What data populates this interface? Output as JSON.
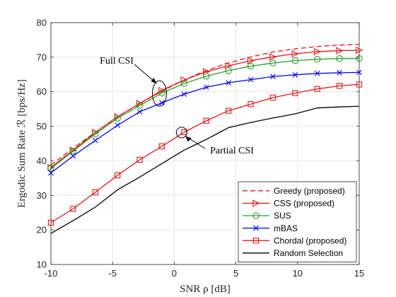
{
  "chart_data": {
    "type": "line",
    "xlabel": "SNR ρ [dB]",
    "ylabel": "Ergodic Sum Rate ℛ [bps/Hz]",
    "xlim": [
      -10,
      15
    ],
    "ylim": [
      10,
      80
    ],
    "xticks": [
      -10,
      -5,
      0,
      5,
      10,
      15
    ],
    "yticks": [
      10,
      20,
      30,
      40,
      50,
      60,
      70,
      80
    ],
    "grid": true,
    "legend_position": "bottom-right",
    "x": [
      -10,
      -8.2,
      -6.4,
      -4.6,
      -2.8,
      -1,
      0.8,
      2.6,
      4.4,
      6.2,
      8,
      9.8,
      11.6,
      13.4,
      15
    ],
    "series": [
      {
        "name": "Greedy (proposed)",
        "color": "#e41a1c",
        "line": "dashed",
        "marker": "none",
        "x": [
          -10,
          -8,
          -6,
          -4,
          -2,
          0,
          2,
          4,
          6,
          8,
          10,
          12,
          14,
          15
        ],
        "values": [
          38.8,
          44.2,
          49.3,
          54.0,
          58.2,
          62.0,
          65.3,
          67.9,
          69.9,
          71.5,
          72.5,
          73.2,
          73.6,
          73.7
        ]
      },
      {
        "name": "CSS (proposed)",
        "color": "#e41a1c",
        "line": "solid",
        "marker": "triangle-right",
        "values": [
          38.1,
          43.1,
          48.2,
          52.8,
          56.6,
          60.4,
          63.4,
          65.8,
          67.5,
          69.0,
          70.1,
          71.0,
          71.6,
          71.9,
          72.0
        ]
      },
      {
        "name": "SUS",
        "color": "#2ca02c",
        "line": "solid",
        "marker": "circle",
        "values": [
          37.8,
          42.8,
          47.8,
          52.3,
          56.0,
          59.6,
          62.4,
          64.5,
          66.1,
          67.4,
          68.3,
          69.0,
          69.4,
          69.6,
          69.6
        ]
      },
      {
        "name": "mBAS",
        "color": "#0000ff",
        "line": "solid",
        "marker": "x",
        "values": [
          36.5,
          41.4,
          45.9,
          50.3,
          54.2,
          56.8,
          59.3,
          61.3,
          62.6,
          63.5,
          64.4,
          64.9,
          65.3,
          65.5,
          65.6
        ]
      },
      {
        "name": "Chordal (proposed)",
        "color": "#e41a1c",
        "line": "solid",
        "marker": "square",
        "values": [
          22.1,
          26.1,
          30.9,
          35.8,
          40.3,
          44.2,
          48.3,
          51.6,
          54.5,
          56.4,
          58.3,
          59.6,
          60.8,
          61.7,
          62.1
        ]
      },
      {
        "name": "Random Selection",
        "color": "#000000",
        "line": "solid",
        "marker": "none",
        "values": [
          19.0,
          22.7,
          26.6,
          31.6,
          35.3,
          39.2,
          43.1,
          46.2,
          49.6,
          51.1,
          52.4,
          53.6,
          55.3,
          55.6,
          55.8
        ]
      }
    ],
    "annotations": [
      {
        "text": "Full CSI",
        "x": -1.2,
        "y": 59.5
      },
      {
        "text": "Partial CSI",
        "x": 0.6,
        "y": 48.2
      }
    ]
  }
}
